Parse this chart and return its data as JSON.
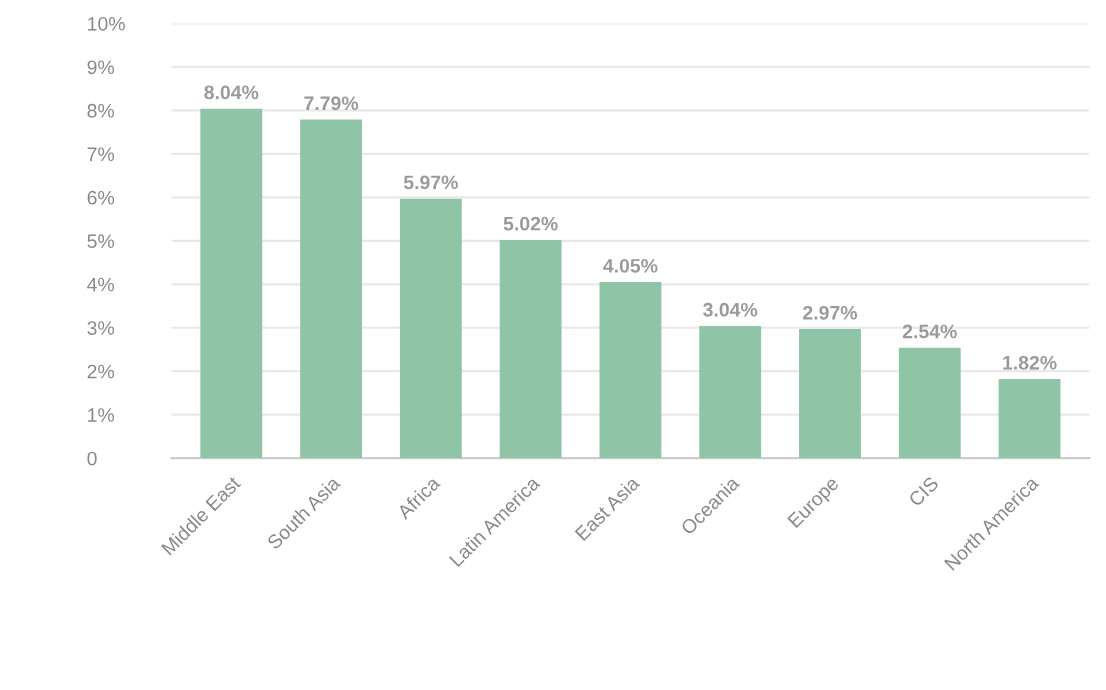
{
  "chart_data": {
    "type": "bar",
    "categories": [
      "Middle East",
      "South Asia",
      "Africa",
      "Latin America",
      "East Asia",
      "Oceania",
      "Europe",
      "CIS",
      "North America"
    ],
    "values": [
      8.04,
      7.79,
      5.97,
      5.02,
      4.05,
      3.04,
      2.97,
      2.54,
      1.82
    ],
    "value_labels": [
      "8.04%",
      "7.79%",
      "5.97%",
      "5.02%",
      "4.05%",
      "3.04%",
      "2.97%",
      "2.54%",
      "1.82%"
    ],
    "color": "#8fc4a6",
    "ylim": [
      0,
      10
    ],
    "yticks": [
      0,
      {
        "value": 1,
        "label": "1%"
      },
      {
        "value": 2,
        "label": "2%"
      },
      {
        "value": 3,
        "label": "3%"
      },
      {
        "value": 4,
        "label": "4%"
      },
      {
        "value": 5,
        "label": "5%"
      },
      {
        "value": 6,
        "label": "6%"
      },
      {
        "value": 7,
        "label": "7%"
      },
      {
        "value": 8,
        "label": "8%"
      },
      {
        "value": 9,
        "label": "9%"
      },
      {
        "value": 10,
        "label": "10%"
      }
    ],
    "grid": "y"
  }
}
